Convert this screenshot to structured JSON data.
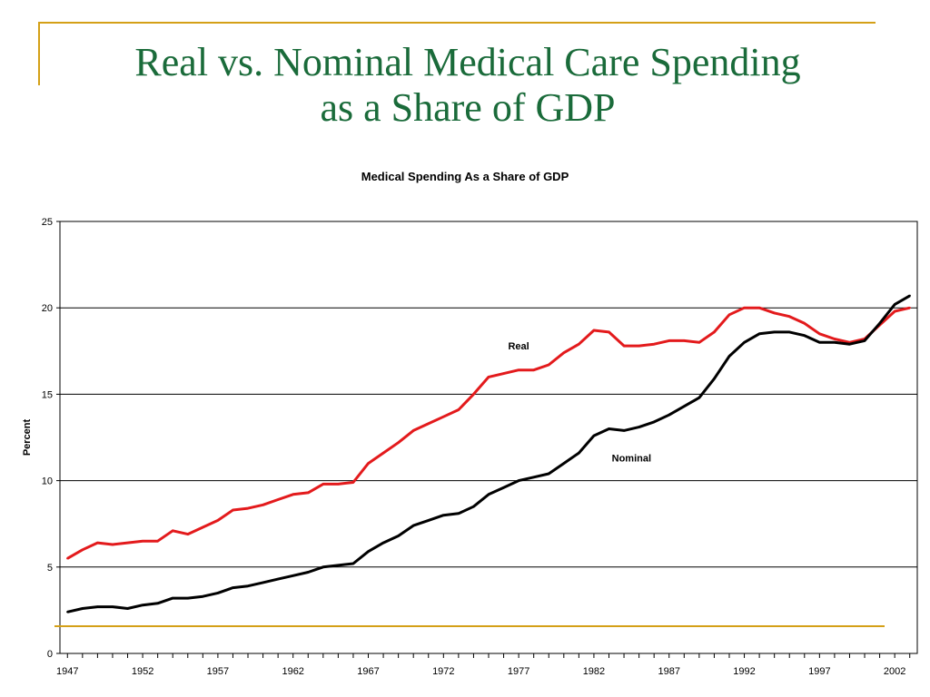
{
  "slide": {
    "title_line1": "Real vs. Nominal Medical Care Spending",
    "title_line2": "as a Share of  GDP"
  },
  "colors": {
    "title": "#1a6b3a",
    "accent": "#d4a017",
    "real": "#e31a1c",
    "nominal": "#000000"
  },
  "chart_data": {
    "type": "line",
    "title": "Medical Spending As a Share of GDP",
    "xlabel": "",
    "ylabel": "Percent",
    "ylim": [
      0,
      25
    ],
    "yticks": [
      0,
      5,
      10,
      15,
      20,
      25
    ],
    "xlim": [
      1946.5,
      2003.5
    ],
    "xticks": [
      1947,
      1952,
      1957,
      1962,
      1967,
      1972,
      1977,
      1982,
      1987,
      1992,
      1997,
      2002
    ],
    "grid": true,
    "x": [
      1947,
      1948,
      1949,
      1950,
      1951,
      1952,
      1953,
      1954,
      1955,
      1956,
      1957,
      1958,
      1959,
      1960,
      1961,
      1962,
      1963,
      1964,
      1965,
      1966,
      1967,
      1968,
      1969,
      1970,
      1971,
      1972,
      1973,
      1974,
      1975,
      1976,
      1977,
      1978,
      1979,
      1980,
      1981,
      1982,
      1983,
      1984,
      1985,
      1986,
      1987,
      1988,
      1989,
      1990,
      1991,
      1992,
      1993,
      1994,
      1995,
      1996,
      1997,
      1998,
      1999,
      2000,
      2001,
      2002,
      2003
    ],
    "series": [
      {
        "name": "Real",
        "color": "#e31a1c",
        "label_at": [
          1977,
          17.6
        ],
        "values": [
          5.5,
          6.0,
          6.4,
          6.3,
          6.4,
          6.5,
          6.5,
          7.1,
          6.9,
          7.3,
          7.7,
          8.3,
          8.4,
          8.6,
          8.9,
          9.2,
          9.3,
          9.8,
          9.8,
          9.9,
          11.0,
          11.6,
          12.2,
          12.9,
          13.3,
          13.7,
          14.1,
          15.0,
          16.0,
          16.2,
          16.4,
          16.4,
          16.7,
          17.4,
          17.9,
          18.7,
          18.6,
          17.8,
          17.8,
          17.9,
          18.1,
          18.1,
          18.0,
          18.6,
          19.6,
          20.0,
          20.0,
          19.7,
          19.5,
          19.1,
          18.5,
          18.2,
          18.0,
          18.2,
          19.0,
          19.8,
          20.0
        ]
      },
      {
        "name": "Nominal",
        "color": "#000000",
        "label_at": [
          1984.5,
          11.1
        ],
        "values": [
          2.4,
          2.6,
          2.7,
          2.7,
          2.6,
          2.8,
          2.9,
          3.2,
          3.2,
          3.3,
          3.5,
          3.8,
          3.9,
          4.1,
          4.3,
          4.5,
          4.7,
          5.0,
          5.1,
          5.2,
          5.9,
          6.4,
          6.8,
          7.4,
          7.7,
          8.0,
          8.1,
          8.5,
          9.2,
          9.6,
          10.0,
          10.2,
          10.4,
          11.0,
          11.6,
          12.6,
          13.0,
          12.9,
          13.1,
          13.4,
          13.8,
          14.3,
          14.8,
          15.9,
          17.2,
          18.0,
          18.5,
          18.6,
          18.6,
          18.4,
          18.0,
          18.0,
          17.9,
          18.1,
          19.1,
          20.2,
          20.7
        ]
      }
    ]
  }
}
